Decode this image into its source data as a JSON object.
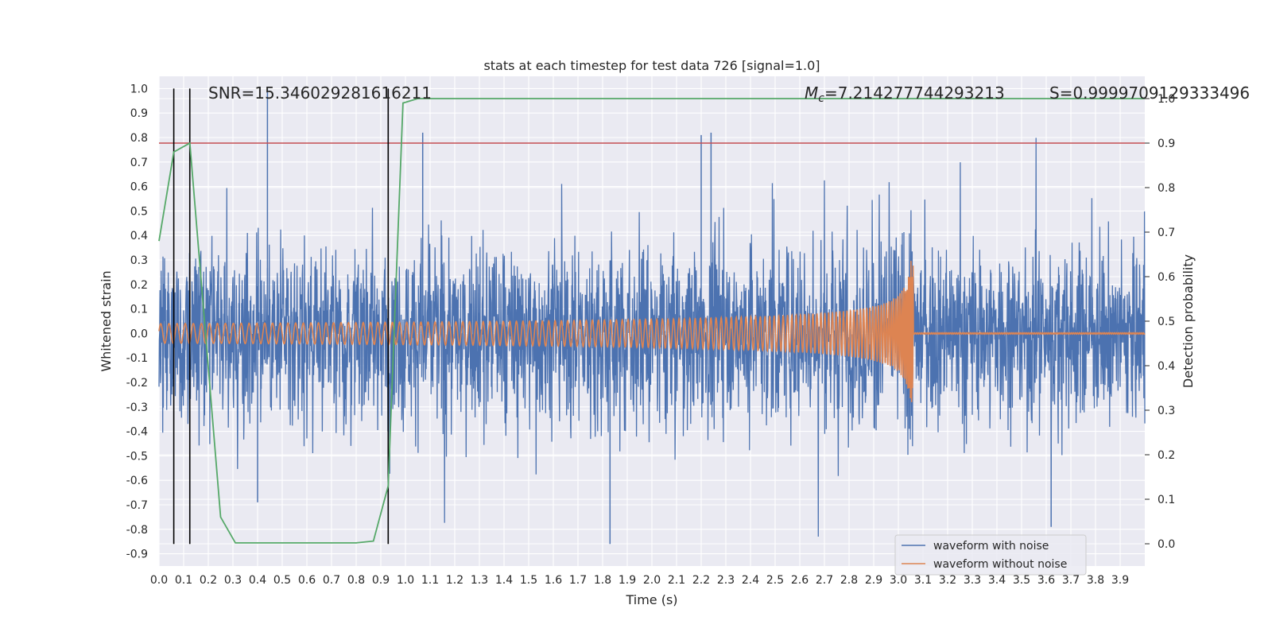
{
  "chart_data": {
    "type": "line",
    "title": "stats at each timestep for test data 726 [signal=1.0]",
    "xlabel": "Time (s)",
    "ylabel": "Whitened strain",
    "y2label": "Detection probability",
    "xlim": [
      0.0,
      4.0
    ],
    "ylim": [
      -0.95,
      1.05
    ],
    "y2lim": [
      -0.05,
      1.05
    ],
    "x_ticks": [
      "0.0",
      "0.1",
      "0.2",
      "0.3",
      "0.4",
      "0.5",
      "0.6",
      "0.7",
      "0.8",
      "0.9",
      "1.0",
      "1.1",
      "1.2",
      "1.3",
      "1.4",
      "1.5",
      "1.6",
      "1.7",
      "1.8",
      "1.9",
      "2.0",
      "2.1",
      "2.2",
      "2.3",
      "2.4",
      "2.5",
      "2.6",
      "2.7",
      "2.8",
      "2.9",
      "3.0",
      "3.1",
      "3.2",
      "3.3",
      "3.4",
      "3.5",
      "3.6",
      "3.7",
      "3.8",
      "3.9"
    ],
    "y_ticks": [
      "1.0",
      "0.9",
      "0.8",
      "0.7",
      "0.6",
      "0.5",
      "0.4",
      "0.3",
      "0.2",
      "0.1",
      "0.0",
      "-0.1",
      "-0.2",
      "-0.3",
      "-0.4",
      "-0.5",
      "-0.6",
      "-0.7",
      "-0.8",
      "-0.9"
    ],
    "y2_ticks": [
      "1.0",
      "0.9",
      "0.8",
      "0.7",
      "0.6",
      "0.5",
      "0.4",
      "0.3",
      "0.2",
      "0.1",
      "0.0"
    ],
    "annotations": {
      "snr": "SNR=15.346029281616211",
      "mc_symbol": "M",
      "mc_sub": "c",
      "mc_value": "=7.214277744293213",
      "s": "S=0.9999709129333496"
    },
    "series": [
      {
        "name": "waveform with noise",
        "color": "#4c72b0",
        "kind": "noise",
        "amplitude_range": [
          -0.86,
          1.0
        ]
      },
      {
        "name": "waveform without noise",
        "color": "#dd8452",
        "kind": "chirp",
        "merger_time": 3.06,
        "start_freq_hz": 30,
        "end_freq_hz": 120
      }
    ],
    "detection_probability": {
      "color": "#55a868",
      "x": [
        0.0,
        0.06,
        0.125,
        0.25,
        0.31,
        0.8,
        0.87,
        0.93,
        0.99,
        1.05,
        1.1,
        4.0
      ],
      "y": [
        0.68,
        0.88,
        0.9,
        0.06,
        0.002,
        0.002,
        0.006,
        0.13,
        0.99,
        1.0,
        1.0,
        1.0
      ]
    },
    "threshold": {
      "y2": 0.9,
      "color": "#c44e52"
    },
    "vertical_markers": [
      0.06,
      0.125,
      0.93
    ],
    "grid": true,
    "legend_position": "lower right"
  }
}
